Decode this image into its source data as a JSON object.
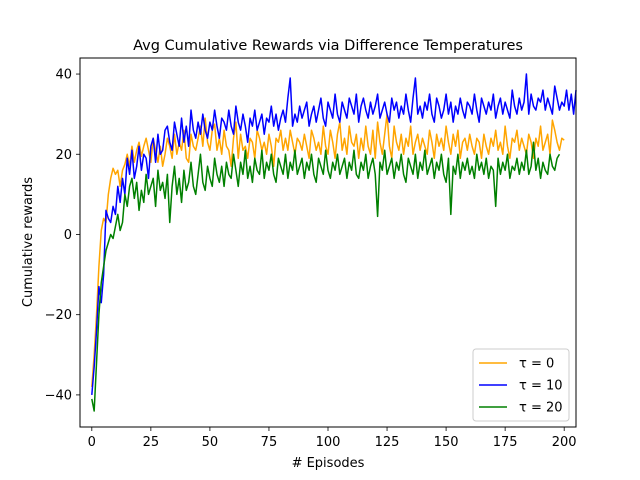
{
  "chart_data": {
    "type": "line",
    "title": "Avg Cumulative Rewards via Difference Temperatures",
    "xlabel": "# Episodes",
    "ylabel": "Cumulative rewards",
    "xlim": [
      -5.0,
      205.0
    ],
    "ylim": [
      -48.0,
      44.0
    ],
    "xticks": [
      0,
      25,
      50,
      75,
      100,
      125,
      150,
      175,
      200
    ],
    "yticks": [
      -40,
      -20,
      0,
      20,
      40
    ],
    "grid": false,
    "legend_position": "bottom-right",
    "series": [
      {
        "name": "τ = 0",
        "color": "#ffa500",
        "values": [
          -38.0,
          -30.0,
          -20.0,
          -8.0,
          1.0,
          4.0,
          3.0,
          10.0,
          14.0,
          16.5,
          15.0,
          16.0,
          12.0,
          16.0,
          17.5,
          20.0,
          17.0,
          22.0,
          18.0,
          21.0,
          23.0,
          19.5,
          22.0,
          24.0,
          21.0,
          18.0,
          24.0,
          21.0,
          18.0,
          22.0,
          17.0,
          20.0,
          24.0,
          22.0,
          19.0,
          25.0,
          20.0,
          23.0,
          21.0,
          26.0,
          19.0,
          18.0,
          25.0,
          22.0,
          21.0,
          24.0,
          27.0,
          22.0,
          29.0,
          23.0,
          21.0,
          26.0,
          27.5,
          21.0,
          24.0,
          20.0,
          26.0,
          22.0,
          21.0,
          17.0,
          24.0,
          28.0,
          19.0,
          25.0,
          21.0,
          22.0,
          19.0,
          24.0,
          23.0,
          19.0,
          26.0,
          24.0,
          21.0,
          23.0,
          20.0,
          25.0,
          22.0,
          17.0,
          24.0,
          23.0,
          26.0,
          21.0,
          24.0,
          21.0,
          26.0,
          23.0,
          20.0,
          24.0,
          23.0,
          21.0,
          25.0,
          22.0,
          19.0,
          26.0,
          24.0,
          21.0,
          23.0,
          20.0,
          27.0,
          22.0,
          20.0,
          26.0,
          23.0,
          19.0,
          25.0,
          28.0,
          21.0,
          24.0,
          20.0,
          27.0,
          23.0,
          22.0,
          25.0,
          19.0,
          24.0,
          21.0,
          27.0,
          22.0,
          20.0,
          26.0,
          19.0,
          28.0,
          23.0,
          20.0,
          25.0,
          30.0,
          22.0,
          19.0,
          27.0,
          23.0,
          21.0,
          25.0,
          20.0,
          24.0,
          22.0,
          27.0,
          20.0,
          23.0,
          25.0,
          21.0,
          24.0,
          22.0,
          20.0,
          26.0,
          23.0,
          19.0,
          25.0,
          22.0,
          24.0,
          21.0,
          27.0,
          23.0,
          20.0,
          25.0,
          22.0,
          26.0,
          19.0,
          23.0,
          24.0,
          21.0,
          25.0,
          22.0,
          20.0,
          24.0,
          23.0,
          19.0,
          25.0,
          22.0,
          20.0,
          24.0,
          22.0,
          26.0,
          21.0,
          23.0,
          20.0,
          27.0,
          22.0,
          19.0,
          24.0,
          23.0,
          26.0,
          21.0,
          24.0,
          22.0,
          20.0,
          25.0,
          23.0,
          19.0,
          24.0,
          22.0,
          27.0,
          21.0,
          23.0,
          25.0,
          20.0,
          28.5,
          26.0,
          23.0,
          21.0,
          24.0,
          23.5
        ]
      },
      {
        "name": "τ = 10",
        "color": "#0000ff",
        "values": [
          -40.0,
          -33.0,
          -24.0,
          -13.0,
          -17.0,
          -10.0,
          6.0,
          4.0,
          3.0,
          7.0,
          5.0,
          12.0,
          8.0,
          14.0,
          10.0,
          19.0,
          15.0,
          21.0,
          14.0,
          17.0,
          22.0,
          16.0,
          20.0,
          19.0,
          14.0,
          22.0,
          24.0,
          18.0,
          25.0,
          20.0,
          21.0,
          26.0,
          27.0,
          23.0,
          21.0,
          28.0,
          25.0,
          22.0,
          29.0,
          23.0,
          27.0,
          22.0,
          31.0,
          26.0,
          24.0,
          28.0,
          25.0,
          30.0,
          26.0,
          24.0,
          28.0,
          26.0,
          31.0,
          27.0,
          24.0,
          29.0,
          28.0,
          26.0,
          31.0,
          27.0,
          25.0,
          32.0,
          28.0,
          26.0,
          30.0,
          27.0,
          23.0,
          29.0,
          27.0,
          31.0,
          26.0,
          28.0,
          30.0,
          25.0,
          29.0,
          28.0,
          32.0,
          27.0,
          30.0,
          26.0,
          29.0,
          31.0,
          28.0,
          34.0,
          39.0,
          27.0,
          30.0,
          28.0,
          32.0,
          29.0,
          31.0,
          33.0,
          27.0,
          30.0,
          32.0,
          28.0,
          31.0,
          34.0,
          29.0,
          27.0,
          33.0,
          31.0,
          29.0,
          35.0,
          30.0,
          28.0,
          33.0,
          31.0,
          29.0,
          34.0,
          32.0,
          30.0,
          35.0,
          28.0,
          32.0,
          34.0,
          31.0,
          29.0,
          33.0,
          30.0,
          32.0,
          35.0,
          29.0,
          31.0,
          33.0,
          30.0,
          28.0,
          34.0,
          31.0,
          33.0,
          29.0,
          32.0,
          30.0,
          35.0,
          31.0,
          28.0,
          34.0,
          39.0,
          30.0,
          32.0,
          29.0,
          33.0,
          31.0,
          35.0,
          30.0,
          28.0,
          34.0,
          32.0,
          29.0,
          31.0,
          35.0,
          30.0,
          33.0,
          28.0,
          32.0,
          30.0,
          34.0,
          31.0,
          29.0,
          33.0,
          32.0,
          30.0,
          35.0,
          31.0,
          28.0,
          34.0,
          32.0,
          30.0,
          33.0,
          31.0,
          35.0,
          29.0,
          32.0,
          34.0,
          30.0,
          33.0,
          31.0,
          29.0,
          36.0,
          32.0,
          30.0,
          34.0,
          31.0,
          33.0,
          40.0,
          30.0,
          35.0,
          32.0,
          31.0,
          34.0,
          33.0,
          36.0,
          31.0,
          34.0,
          32.0,
          30.0,
          37.0,
          34.0,
          31.0,
          33.0,
          32.0,
          36.0,
          31.0,
          35.0,
          30.0,
          36.0
        ]
      },
      {
        "name": "τ = 20",
        "color": "#008000",
        "values": [
          -41.0,
          -44.0,
          -32.0,
          -20.0,
          -12.0,
          -8.0,
          -4.0,
          -2.0,
          0.0,
          -1.0,
          2.0,
          5.0,
          1.0,
          3.0,
          10.0,
          7.0,
          12.0,
          14.0,
          9.0,
          13.0,
          6.0,
          11.0,
          8.0,
          15.0,
          10.0,
          12.0,
          14.0,
          7.0,
          16.0,
          11.0,
          13.0,
          9.0,
          15.0,
          3.0,
          12.0,
          17.0,
          10.0,
          14.0,
          8.0,
          16.0,
          11.0,
          13.0,
          18.0,
          12.0,
          10.0,
          15.0,
          20.0,
          13.0,
          11.0,
          17.0,
          14.0,
          12.0,
          19.0,
          15.0,
          13.0,
          17.0,
          12.0,
          18.0,
          15.0,
          14.0,
          20.0,
          16.0,
          12.0,
          18.0,
          15.0,
          21.0,
          14.0,
          17.0,
          13.0,
          19.0,
          16.0,
          15.0,
          21.0,
          14.0,
          18.0,
          16.0,
          20.0,
          15.0,
          13.0,
          19.0,
          17.0,
          15.0,
          20.0,
          14.0,
          18.0,
          16.0,
          21.0,
          15.0,
          17.0,
          19.0,
          14.0,
          18.0,
          16.0,
          20.0,
          15.0,
          13.0,
          19.0,
          17.0,
          15.0,
          21.0,
          16.0,
          14.0,
          18.0,
          16.0,
          20.0,
          15.0,
          17.0,
          19.0,
          14.0,
          18.0,
          16.0,
          21.0,
          15.0,
          14.0,
          18.0,
          16.0,
          20.0,
          14.0,
          17.0,
          19.0,
          15.0,
          4.5,
          18.0,
          16.0,
          21.0,
          15.0,
          17.0,
          19.0,
          14.0,
          18.0,
          16.0,
          20.0,
          15.0,
          13.0,
          19.0,
          17.0,
          15.0,
          20.0,
          14.0,
          18.0,
          16.0,
          21.0,
          15.0,
          17.0,
          19.0,
          14.0,
          18.0,
          16.0,
          20.0,
          15.0,
          13.0,
          19.0,
          5.0,
          17.0,
          15.0,
          20.0,
          14.0,
          18.0,
          16.0,
          19.0,
          15.0,
          17.0,
          14.0,
          20.0,
          16.0,
          18.0,
          15.0,
          19.0,
          14.0,
          17.0,
          16.0,
          7.0,
          19.0,
          15.0,
          18.0,
          16.0,
          20.0,
          14.0,
          17.0,
          16.0,
          19.0,
          15.0,
          18.0,
          16.0,
          21.0,
          15.0,
          17.0,
          23.0,
          16.0,
          19.0,
          14.0,
          18.0,
          16.0,
          15.0,
          20.0,
          17.0,
          16.0,
          19.0,
          20.0
        ]
      }
    ]
  }
}
